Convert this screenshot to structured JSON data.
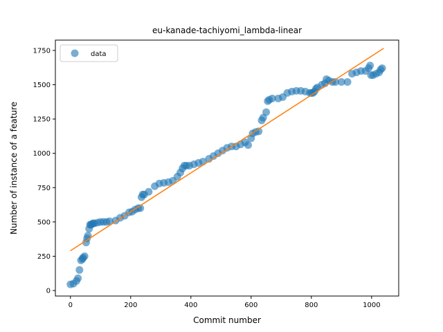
{
  "chart_data": {
    "type": "scatter",
    "title": "eu-kanade-tachiyomi_lambda-linear",
    "xlabel": "Commit number",
    "ylabel": "Number of instance of a feature",
    "xlim": [
      -50,
      1090
    ],
    "ylim": [
      -40,
      1825
    ],
    "xticks": [
      0,
      200,
      400,
      600,
      800,
      1000
    ],
    "yticks": [
      0,
      250,
      500,
      750,
      1000,
      1250,
      1500,
      1750
    ],
    "grid": false,
    "legend": {
      "placement": "top-left",
      "entries": [
        "data"
      ]
    },
    "colors": {
      "scatter": "#1f77b4",
      "fit_line": "#ff7f0e"
    },
    "series": [
      {
        "name": "data",
        "kind": "scatter",
        "x": [
          0,
          10,
          20,
          25,
          30,
          35,
          40,
          42,
          47,
          52,
          55,
          58,
          62,
          65,
          68,
          72,
          75,
          80,
          90,
          100,
          110,
          120,
          130,
          150,
          165,
          180,
          195,
          205,
          215,
          225,
          232,
          236,
          240,
          245,
          260,
          280,
          295,
          310,
          325,
          340,
          355,
          365,
          372,
          378,
          385,
          395,
          410,
          425,
          440,
          460,
          475,
          490,
          505,
          520,
          535,
          550,
          565,
          580,
          590,
          600,
          605,
          615,
          625,
          635,
          640,
          650,
          655,
          660,
          670,
          690,
          705,
          720,
          735,
          750,
          765,
          780,
          795,
          800,
          805,
          810,
          815,
          820,
          835,
          845,
          850,
          858,
          870,
          880,
          900,
          920,
          935,
          950,
          965,
          980,
          990,
          995,
          998,
          1005,
          1015,
          1025,
          1030,
          1035
        ],
        "y": [
          45,
          50,
          70,
          90,
          150,
          220,
          230,
          240,
          250,
          350,
          380,
          400,
          450,
          480,
          480,
          485,
          490,
          490,
          495,
          500,
          500,
          500,
          505,
          510,
          530,
          545,
          570,
          575,
          590,
          600,
          600,
          680,
          700,
          700,
          720,
          760,
          780,
          785,
          790,
          800,
          830,
          860,
          890,
          910,
          910,
          910,
          920,
          930,
          940,
          960,
          980,
          1000,
          1020,
          1040,
          1050,
          1050,
          1065,
          1080,
          1060,
          1110,
          1145,
          1155,
          1160,
          1240,
          1260,
          1300,
          1380,
          1390,
          1400,
          1400,
          1410,
          1440,
          1450,
          1455,
          1455,
          1450,
          1440,
          1440,
          1440,
          1450,
          1470,
          1480,
          1500,
          1510,
          1540,
          1530,
          1520,
          1520,
          1520,
          1520,
          1580,
          1590,
          1600,
          1600,
          1620,
          1640,
          1570,
          1570,
          1580,
          1590,
          1610,
          1620
        ]
      },
      {
        "kind": "line",
        "x": [
          0,
          1040
        ],
        "y": [
          290,
          1765
        ]
      }
    ]
  }
}
